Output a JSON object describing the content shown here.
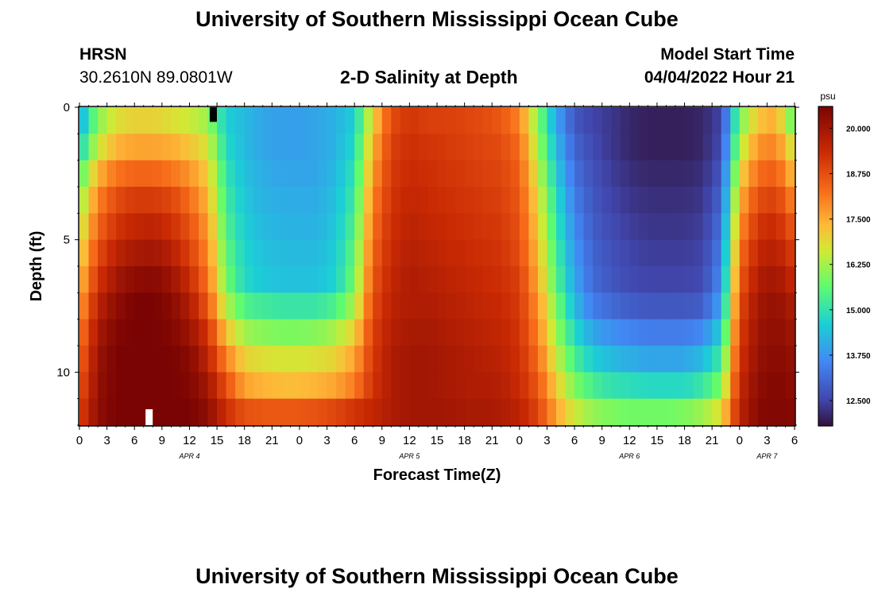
{
  "page": {
    "title": "University of Southern Mississippi Ocean Cube",
    "footer_title": "University of Southern Mississippi Ocean Cube",
    "station": "HRSN",
    "coords": "30.2610N  89.0801W",
    "plot_title": "2-D Salinity at Depth",
    "model_start_label": "Model Start Time",
    "model_start_value": "04/04/2022 Hour 21"
  },
  "chart_data": {
    "type": "heatmap",
    "title": "2-D Salinity at Depth",
    "xlabel": "Forecast Time(Z)",
    "ylabel": "Depth (ft)",
    "units": "psu",
    "x_start_hour": 0,
    "x_end_hour": 78,
    "x_ticks": [
      "0",
      "3",
      "6",
      "9",
      "12",
      "15",
      "18",
      "21",
      "0",
      "3",
      "6",
      "9",
      "12",
      "15",
      "18",
      "21",
      "0",
      "3",
      "6",
      "9",
      "12",
      "15",
      "18",
      "21",
      "0",
      "3",
      "6"
    ],
    "day_labels": [
      {
        "label": "APR 4",
        "hour": 12
      },
      {
        "label": "APR 5",
        "hour": 36
      },
      {
        "label": "APR 6",
        "hour": 60
      },
      {
        "label": "APR 7",
        "hour": 75
      }
    ],
    "y_ticks": [
      0,
      5,
      10
    ],
    "ylim": [
      0,
      12
    ],
    "depth_levels": 12,
    "colorbar": {
      "range": [
        11.8,
        20.6
      ],
      "ticks": [
        "20.000",
        "18.750",
        "17.500",
        "16.250",
        "15.000",
        "13.750",
        "12.500"
      ],
      "tick_values": [
        20.0,
        18.75,
        17.5,
        16.25,
        15.0,
        13.75,
        12.5
      ]
    },
    "salinity_keyframes_by_depth_row": {
      "hours": [
        0,
        2,
        4,
        6,
        8,
        10,
        12,
        14,
        16,
        18,
        20,
        22,
        24,
        26,
        28,
        30,
        32,
        34,
        36,
        38,
        40,
        42,
        44,
        46,
        48,
        50,
        52,
        54,
        56,
        58,
        60,
        62,
        64,
        66,
        68,
        70,
        72,
        74,
        76,
        78
      ],
      "rows": [
        [
          14.0,
          16.0,
          16.8,
          17.0,
          17.0,
          16.8,
          16.6,
          16.2,
          14.6,
          14.3,
          14.0,
          13.9,
          13.9,
          14.0,
          14.2,
          14.6,
          17.0,
          18.8,
          19.2,
          19.0,
          19.0,
          18.9,
          18.8,
          18.6,
          18.0,
          16.0,
          14.0,
          12.8,
          12.5,
          12.3,
          12.1,
          12.0,
          12.0,
          12.0,
          12.1,
          12.5,
          15.8,
          17.2,
          17.5,
          15.5
        ],
        [
          14.6,
          16.6,
          17.4,
          17.6,
          17.6,
          17.5,
          17.2,
          16.7,
          14.8,
          14.3,
          14.0,
          13.9,
          13.9,
          14.0,
          14.2,
          14.8,
          17.4,
          19.0,
          19.3,
          19.2,
          19.1,
          19.0,
          18.9,
          18.8,
          18.3,
          16.3,
          14.3,
          13.0,
          12.6,
          12.3,
          12.1,
          12.0,
          12.0,
          12.0,
          12.1,
          12.6,
          16.3,
          17.8,
          18.0,
          16.5
        ],
        [
          15.4,
          17.4,
          18.2,
          18.4,
          18.4,
          18.2,
          17.8,
          17.1,
          15.0,
          14.4,
          14.1,
          14.0,
          14.0,
          14.0,
          14.3,
          15.0,
          17.7,
          19.1,
          19.4,
          19.3,
          19.2,
          19.1,
          19.0,
          18.9,
          18.5,
          16.6,
          14.6,
          13.2,
          12.7,
          12.4,
          12.2,
          12.1,
          12.1,
          12.1,
          12.2,
          12.8,
          16.9,
          18.3,
          18.5,
          17.2
        ],
        [
          16.0,
          18.0,
          18.8,
          19.1,
          19.1,
          18.9,
          18.3,
          17.4,
          15.2,
          14.5,
          14.2,
          14.1,
          14.1,
          14.1,
          14.4,
          15.2,
          18.0,
          19.2,
          19.5,
          19.4,
          19.3,
          19.2,
          19.1,
          19.0,
          18.6,
          16.9,
          14.9,
          13.4,
          12.8,
          12.5,
          12.3,
          12.2,
          12.2,
          12.2,
          12.3,
          13.0,
          17.4,
          18.8,
          19.0,
          17.9
        ],
        [
          16.4,
          18.4,
          19.2,
          19.5,
          19.6,
          19.3,
          18.7,
          17.7,
          15.4,
          14.6,
          14.3,
          14.2,
          14.2,
          14.2,
          14.5,
          15.4,
          18.2,
          19.3,
          19.6,
          19.5,
          19.4,
          19.3,
          19.2,
          19.1,
          18.7,
          17.1,
          15.1,
          13.6,
          12.9,
          12.6,
          12.4,
          12.3,
          12.3,
          12.3,
          12.4,
          13.2,
          17.8,
          19.2,
          19.4,
          18.5
        ],
        [
          16.8,
          18.8,
          19.6,
          19.9,
          20.0,
          19.7,
          19.0,
          17.9,
          15.6,
          14.7,
          14.4,
          14.3,
          14.3,
          14.3,
          14.6,
          15.6,
          18.4,
          19.4,
          19.7,
          19.6,
          19.5,
          19.4,
          19.3,
          19.2,
          18.8,
          17.3,
          15.3,
          13.8,
          13.0,
          12.7,
          12.5,
          12.4,
          12.4,
          12.4,
          12.5,
          13.4,
          18.2,
          19.5,
          19.7,
          19.0
        ],
        [
          17.2,
          19.2,
          20.0,
          20.3,
          20.4,
          20.1,
          19.4,
          18.2,
          15.8,
          14.8,
          14.5,
          14.4,
          14.4,
          14.4,
          14.7,
          15.8,
          18.6,
          19.5,
          19.8,
          19.7,
          19.6,
          19.5,
          19.4,
          19.3,
          19.0,
          17.5,
          15.5,
          14.0,
          13.1,
          12.8,
          12.6,
          12.5,
          12.5,
          12.5,
          12.6,
          13.6,
          18.5,
          19.8,
          20.0,
          19.4
        ],
        [
          17.6,
          19.6,
          20.3,
          20.6,
          20.6,
          20.4,
          19.8,
          18.6,
          16.4,
          15.4,
          15.2,
          15.1,
          15.1,
          15.1,
          15.4,
          16.3,
          18.8,
          19.6,
          19.8,
          19.8,
          19.7,
          19.6,
          19.5,
          19.4,
          19.1,
          17.8,
          15.9,
          14.3,
          13.4,
          13.1,
          12.9,
          12.8,
          12.8,
          12.8,
          12.9,
          14.0,
          18.8,
          20.0,
          20.2,
          19.8
        ],
        [
          18.0,
          19.9,
          20.5,
          20.6,
          20.6,
          20.5,
          20.1,
          19.2,
          17.2,
          16.2,
          16.0,
          15.9,
          15.9,
          16.0,
          16.3,
          17.0,
          19.0,
          19.7,
          19.9,
          19.9,
          19.8,
          19.7,
          19.6,
          19.5,
          19.2,
          18.0,
          16.2,
          14.8,
          14.0,
          13.7,
          13.5,
          13.4,
          13.4,
          13.4,
          13.6,
          14.6,
          19.0,
          20.1,
          20.3,
          20.0
        ],
        [
          18.3,
          20.1,
          20.6,
          20.6,
          20.6,
          20.6,
          20.4,
          19.6,
          18.0,
          17.0,
          16.8,
          16.7,
          16.7,
          16.8,
          17.0,
          17.6,
          19.1,
          19.8,
          20.0,
          20.0,
          19.9,
          19.8,
          19.7,
          19.6,
          19.3,
          18.3,
          16.6,
          15.3,
          14.6,
          14.3,
          14.1,
          14.0,
          14.0,
          14.0,
          14.3,
          15.2,
          19.2,
          20.2,
          20.4,
          20.2
        ],
        [
          18.6,
          20.2,
          20.6,
          20.6,
          20.6,
          20.6,
          20.5,
          20.0,
          18.7,
          17.6,
          17.4,
          17.3,
          17.3,
          17.4,
          17.6,
          18.1,
          19.2,
          19.8,
          20.0,
          20.0,
          19.9,
          19.8,
          19.8,
          19.7,
          19.4,
          18.6,
          17.1,
          15.9,
          15.3,
          15.0,
          14.9,
          14.8,
          14.8,
          14.8,
          15.1,
          15.9,
          19.4,
          20.3,
          20.5,
          20.3
        ],
        [
          18.9,
          20.3,
          20.6,
          20.6,
          20.6,
          20.6,
          20.6,
          20.3,
          19.3,
          18.7,
          18.6,
          18.6,
          18.6,
          18.7,
          18.9,
          19.2,
          19.5,
          19.8,
          20.0,
          20.0,
          20.0,
          19.9,
          19.9,
          19.8,
          19.6,
          18.9,
          17.6,
          16.6,
          16.1,
          15.9,
          15.8,
          15.8,
          15.8,
          15.9,
          16.2,
          16.8,
          19.6,
          20.4,
          20.5,
          20.4
        ]
      ]
    },
    "markers": [
      {
        "hour": 7.6,
        "depth_row": 11,
        "fill": "#ffffff"
      },
      {
        "hour": 14.6,
        "depth_row": 0,
        "fill": "#000000"
      }
    ]
  }
}
